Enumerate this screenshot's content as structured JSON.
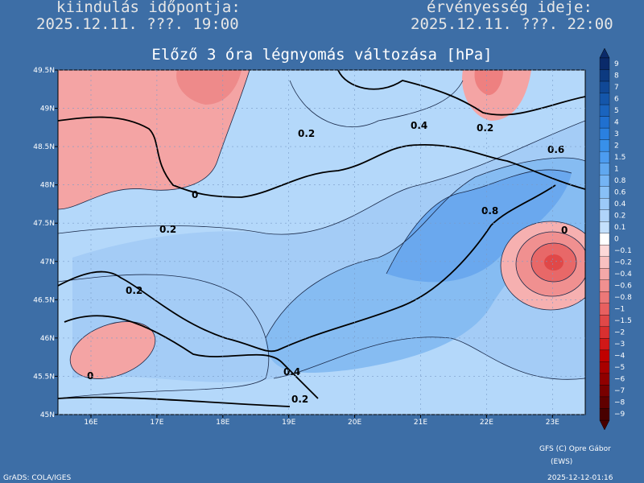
{
  "header": {
    "left_label": "kiindulás időpontja:",
    "left_time": "2025.12.11. ???. 19:00",
    "right_label": "érvényesség ideje:",
    "right_time": "2025.12.11. ???. 22:00"
  },
  "title": "Előző 3 óra légnyomás változása [hPa]",
  "lat_labels": [
    "49.5N",
    "49N",
    "48.5N",
    "48N",
    "47.5N",
    "47N",
    "46.5N",
    "46N",
    "45.5N",
    "45N"
  ],
  "lon_labels": [
    "16E",
    "17E",
    "18E",
    "19E",
    "20E",
    "21E",
    "22E",
    "23E"
  ],
  "contour_labels": [
    "0.2",
    "0.4",
    "0.2",
    "0.6",
    "0",
    "0.8",
    "0",
    "0.2",
    "0.2",
    "0",
    "0.4",
    "0.2"
  ],
  "legend": [
    {
      "label": "9",
      "color": "#0a2a6a"
    },
    {
      "label": "8",
      "color": "#0c3a80"
    },
    {
      "label": "7",
      "color": "#104896"
    },
    {
      "label": "6",
      "color": "#1456aa"
    },
    {
      "label": "5",
      "color": "#1a64be"
    },
    {
      "label": "4",
      "color": "#2070d0"
    },
    {
      "label": "3",
      "color": "#2a80e0"
    },
    {
      "label": "2",
      "color": "#3890ea"
    },
    {
      "label": "1.5",
      "color": "#4c9cf0"
    },
    {
      "label": "1",
      "color": "#60a8f0"
    },
    {
      "label": "0.8",
      "color": "#74b4f4"
    },
    {
      "label": "0.6",
      "color": "#88c0f6"
    },
    {
      "label": "0.4",
      "color": "#9ccaf8"
    },
    {
      "label": "0.2",
      "color": "#b0d4fa"
    },
    {
      "label": "0.1",
      "color": "#c4e0fc"
    },
    {
      "label": "0",
      "color": "#ffffff"
    },
    {
      "label": "−0.1",
      "color": "#fcd8d8"
    },
    {
      "label": "−0.2",
      "color": "#f8c0c0"
    },
    {
      "label": "−0.4",
      "color": "#f4a8a8"
    },
    {
      "label": "−0.6",
      "color": "#f09090"
    },
    {
      "label": "−0.8",
      "color": "#ec7878"
    },
    {
      "label": "−1",
      "color": "#e86060"
    },
    {
      "label": "−1.5",
      "color": "#e04848"
    },
    {
      "label": "−2",
      "color": "#d83030"
    },
    {
      "label": "−3",
      "color": "#d01818"
    },
    {
      "label": "−4",
      "color": "#c00000"
    },
    {
      "label": "−5",
      "color": "#a80000"
    },
    {
      "label": "−6",
      "color": "#900000"
    },
    {
      "label": "−7",
      "color": "#780000"
    },
    {
      "label": "−8",
      "color": "#600000"
    },
    {
      "label": "−9",
      "color": "#480000"
    }
  ],
  "footer": {
    "credit": "GFS (C) Opre Gábor",
    "credit_sub": "(EWS)",
    "software": "GrADS: COLA/IGES",
    "timestamp": "2025-12-12-01:16"
  }
}
